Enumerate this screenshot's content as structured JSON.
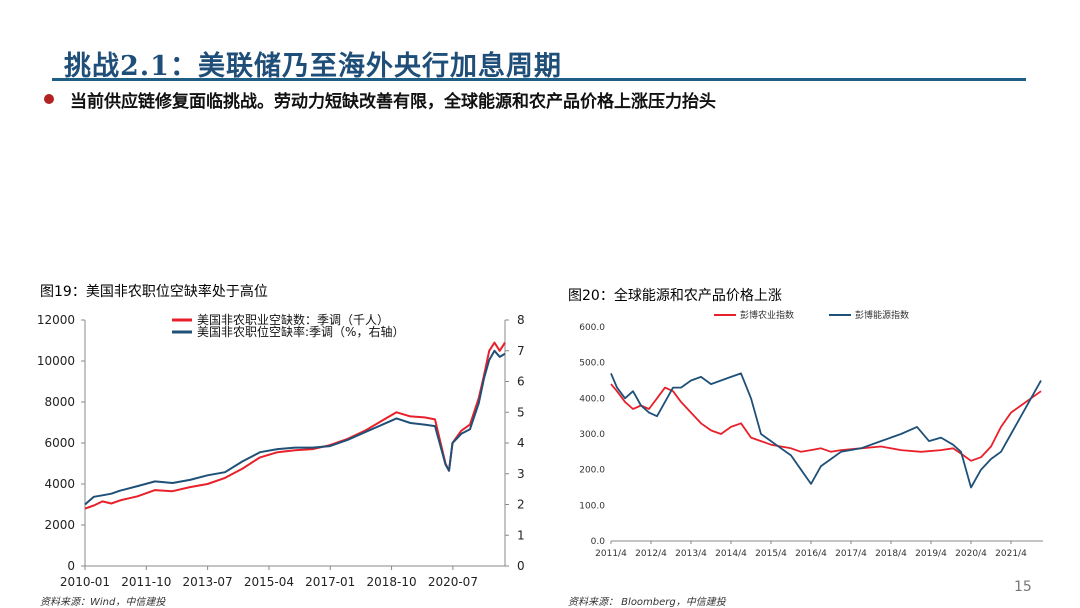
{
  "slide": {
    "title": "挑战2.1：美联储乃至海外央行加息周期",
    "bullet": "当前供应链修复面临挑战。劳动力短缺改善有限，全球能源和农产品价格上涨压力抬头",
    "page_number": "15"
  },
  "figures": [
    {
      "caption": "图19：美国非农职位空缺率处于高位",
      "source": "资料来源：Wind，中信建投"
    },
    {
      "caption": "图20：全球能源和农产品价格上涨",
      "source": "资料来源： Bloomberg，中信建投"
    }
  ],
  "colors": {
    "title": "#1f4e79",
    "bullet": "#b22222",
    "red_series": "#e8202a",
    "blue_series": "#1f5078"
  },
  "chart_data": [
    {
      "type": "line",
      "title": "图19：美国非农职位空缺率处于高位",
      "xlabels": [
        "2010-01",
        "2011-10",
        "2013-07",
        "2015-04",
        "2017-01",
        "2018-10",
        "2020-07"
      ],
      "xlim": [
        2010.0,
        2022.0
      ],
      "ylim": [
        0,
        12000
      ],
      "yticks": [
        0,
        2000,
        4000,
        6000,
        8000,
        10000,
        12000
      ],
      "y2lim": [
        0,
        8
      ],
      "y2ticks": [
        0,
        1,
        2,
        3,
        4,
        5,
        6,
        7,
        8
      ],
      "grid": false,
      "legend": "top-center",
      "series": [
        {
          "name": "美国非农职业空缺数：季调（千人）",
          "axis": "left",
          "color": "#e8202a",
          "x": [
            2010.0,
            2010.25,
            2010.5,
            2010.75,
            2011.0,
            2011.5,
            2012.0,
            2012.5,
            2013.0,
            2013.5,
            2014.0,
            2014.5,
            2015.0,
            2015.5,
            2016.0,
            2016.5,
            2017.0,
            2017.5,
            2018.0,
            2018.5,
            2018.9,
            2019.3,
            2019.7,
            2020.0,
            2020.3,
            2020.4,
            2020.5,
            2020.75,
            2021.0,
            2021.25,
            2021.4,
            2021.55,
            2021.7,
            2021.85,
            2022.0
          ],
          "y": [
            2800,
            2950,
            3150,
            3050,
            3200,
            3400,
            3700,
            3650,
            3850,
            4000,
            4300,
            4750,
            5300,
            5550,
            5650,
            5700,
            5900,
            6200,
            6600,
            7100,
            7500,
            7300,
            7250,
            7150,
            5000,
            4650,
            6000,
            6600,
            6900,
            8200,
            9300,
            10500,
            10900,
            10500,
            10900
          ]
        },
        {
          "name": "美国非农职位空缺率:季调（%，右轴）",
          "axis": "right",
          "color": "#1f5078",
          "x": [
            2010.0,
            2010.25,
            2010.5,
            2010.75,
            2011.0,
            2011.5,
            2012.0,
            2012.5,
            2013.0,
            2013.5,
            2014.0,
            2014.5,
            2015.0,
            2015.5,
            2016.0,
            2016.5,
            2017.0,
            2017.5,
            2018.0,
            2018.5,
            2018.9,
            2019.3,
            2019.7,
            2020.0,
            2020.3,
            2020.4,
            2020.5,
            2020.75,
            2021.0,
            2021.25,
            2021.4,
            2021.55,
            2021.7,
            2021.85,
            2022.0
          ],
          "y": [
            2.0,
            2.25,
            2.3,
            2.35,
            2.45,
            2.6,
            2.75,
            2.7,
            2.8,
            2.95,
            3.05,
            3.4,
            3.7,
            3.8,
            3.85,
            3.85,
            3.9,
            4.1,
            4.35,
            4.6,
            4.8,
            4.65,
            4.6,
            4.55,
            3.3,
            3.1,
            4.0,
            4.3,
            4.45,
            5.3,
            6.1,
            6.7,
            7.0,
            6.8,
            6.9
          ]
        }
      ]
    },
    {
      "type": "line",
      "title": "图20：全球能源和农产品价格上涨",
      "xlabels": [
        "2011/4",
        "2012/4",
        "2013/4",
        "2014/4",
        "2015/4",
        "2016/4",
        "2017/4",
        "2018/4",
        "2019/4",
        "2020/4",
        "2021/4"
      ],
      "xlim": [
        2011.25,
        2022.05
      ],
      "ylim": [
        0,
        600
      ],
      "yticks": [
        "0.0",
        "100.0",
        "200.0",
        "300.0",
        "400.0",
        "500.0",
        "600.0"
      ],
      "grid": false,
      "legend": "top-center",
      "series": [
        {
          "name": "彭博农业指数",
          "color": "#e8202a",
          "x": [
            2011.25,
            2011.4,
            2011.6,
            2011.8,
            2012.0,
            2012.2,
            2012.4,
            2012.6,
            2012.8,
            2013.0,
            2013.25,
            2013.5,
            2013.75,
            2014.0,
            2014.25,
            2014.5,
            2014.75,
            2015.0,
            2015.25,
            2015.5,
            2015.75,
            2016.0,
            2016.25,
            2016.5,
            2016.75,
            2017.0,
            2017.5,
            2018.0,
            2018.5,
            2019.0,
            2019.5,
            2019.8,
            2020.0,
            2020.25,
            2020.5,
            2020.75,
            2021.0,
            2021.25,
            2021.5,
            2021.75,
            2022.0
          ],
          "y": [
            440,
            420,
            390,
            370,
            380,
            370,
            400,
            430,
            420,
            390,
            360,
            330,
            310,
            300,
            320,
            330,
            290,
            280,
            270,
            265,
            260,
            250,
            255,
            260,
            250,
            255,
            260,
            265,
            255,
            250,
            255,
            260,
            245,
            225,
            235,
            265,
            320,
            360,
            380,
            400,
            420
          ]
        },
        {
          "name": "彭博能源指数",
          "color": "#1f5078",
          "x": [
            2011.25,
            2011.4,
            2011.6,
            2011.8,
            2012.0,
            2012.2,
            2012.4,
            2012.6,
            2012.8,
            2013.0,
            2013.25,
            2013.5,
            2013.75,
            2014.0,
            2014.25,
            2014.5,
            2014.75,
            2015.0,
            2015.25,
            2015.5,
            2015.75,
            2016.0,
            2016.25,
            2016.5,
            2016.75,
            2017.0,
            2017.5,
            2018.0,
            2018.5,
            2018.9,
            2019.2,
            2019.5,
            2019.8,
            2020.0,
            2020.25,
            2020.5,
            2020.75,
            2021.0,
            2021.25,
            2021.5,
            2021.75,
            2022.0
          ],
          "y": [
            470,
            430,
            400,
            420,
            380,
            360,
            350,
            390,
            430,
            430,
            450,
            460,
            440,
            450,
            460,
            470,
            400,
            300,
            280,
            260,
            240,
            200,
            160,
            210,
            230,
            250,
            260,
            280,
            300,
            320,
            280,
            290,
            270,
            250,
            150,
            200,
            230,
            250,
            300,
            350,
            400,
            450
          ]
        }
      ]
    }
  ]
}
